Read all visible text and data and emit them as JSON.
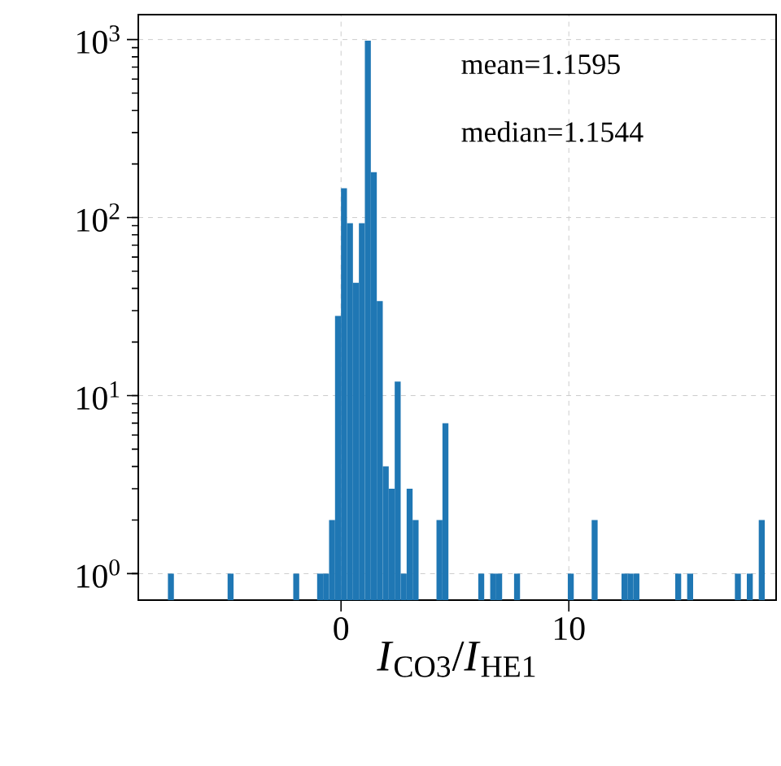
{
  "chart_data": {
    "type": "histogram",
    "xlabel": "*I*$_{CO3}$/*I*$_{HE1}$",
    "annotations": [
      "mean=1.1595",
      "median=1.1544"
    ],
    "bins": [
      -7.6,
      -7.338,
      -7.076,
      -6.814,
      -6.552,
      -6.29,
      -6.028,
      -5.766,
      -5.504,
      -5.242,
      -4.98,
      -4.718,
      -4.456,
      -4.194,
      -3.932,
      -3.67,
      -3.408,
      -3.146,
      -2.884,
      -2.622,
      -2.36,
      -2.098,
      -1.836,
      -1.574,
      -1.312,
      -1.05,
      -0.788,
      -0.526,
      -0.264,
      -0.002,
      0.26,
      0.522,
      0.784,
      1.046,
      1.308,
      1.57,
      1.832,
      2.094,
      2.356,
      2.618,
      2.88,
      3.142,
      3.404,
      3.666,
      3.928,
      4.19,
      4.452,
      4.714,
      4.976,
      5.238,
      5.5,
      5.762,
      6.024,
      6.286,
      6.548,
      6.81,
      7.072,
      7.334,
      7.596,
      7.858,
      8.12,
      8.382,
      8.644,
      8.906,
      9.168,
      9.43,
      9.692,
      9.954,
      10.216,
      10.478,
      10.74,
      11.002,
      11.264,
      11.526,
      11.788,
      12.05,
      12.312,
      12.574,
      12.836,
      13.098,
      13.36,
      13.622,
      13.884,
      14.146,
      14.408,
      14.67,
      14.932,
      15.194,
      15.456,
      15.718,
      15.98,
      16.242,
      16.504,
      16.766,
      17.028,
      17.29,
      17.552,
      17.814,
      18.076,
      18.338,
      18.6
    ],
    "values": [
      1,
      null,
      null,
      null,
      null,
      null,
      null,
      null,
      null,
      null,
      1,
      null,
      null,
      null,
      null,
      null,
      null,
      null,
      null,
      null,
      null,
      1,
      null,
      null,
      null,
      1,
      1,
      2,
      28,
      146,
      93,
      43,
      93,
      985,
      180,
      34,
      4,
      3,
      12,
      1,
      3,
      2,
      null,
      null,
      null,
      2,
      7,
      null,
      null,
      null,
      null,
      null,
      1,
      null,
      1,
      1,
      null,
      null,
      1,
      null,
      null,
      null,
      null,
      null,
      null,
      null,
      null,
      1,
      null,
      null,
      null,
      2,
      null,
      null,
      null,
      null,
      1,
      1,
      1,
      null,
      null,
      null,
      null,
      null,
      null,
      1,
      null,
      1,
      null,
      null,
      null,
      null,
      null,
      null,
      null,
      1,
      null,
      1,
      null,
      2
    ],
    "color": "#1f77b4",
    "log": "y",
    "grid": true,
    "xlim": [
      -8.9,
      19.1
    ],
    "xticks": [
      0,
      10
    ],
    "ylim": [
      0.71,
      1380
    ],
    "yticks": [
      {
        "value": 1,
        "label": "10$^{0}$"
      },
      {
        "value": 10,
        "label": "10$^{1}$"
      },
      {
        "value": 100,
        "label": "10$^{2}$"
      },
      {
        "value": 1000,
        "label": "10$^{3}$"
      }
    ]
  }
}
